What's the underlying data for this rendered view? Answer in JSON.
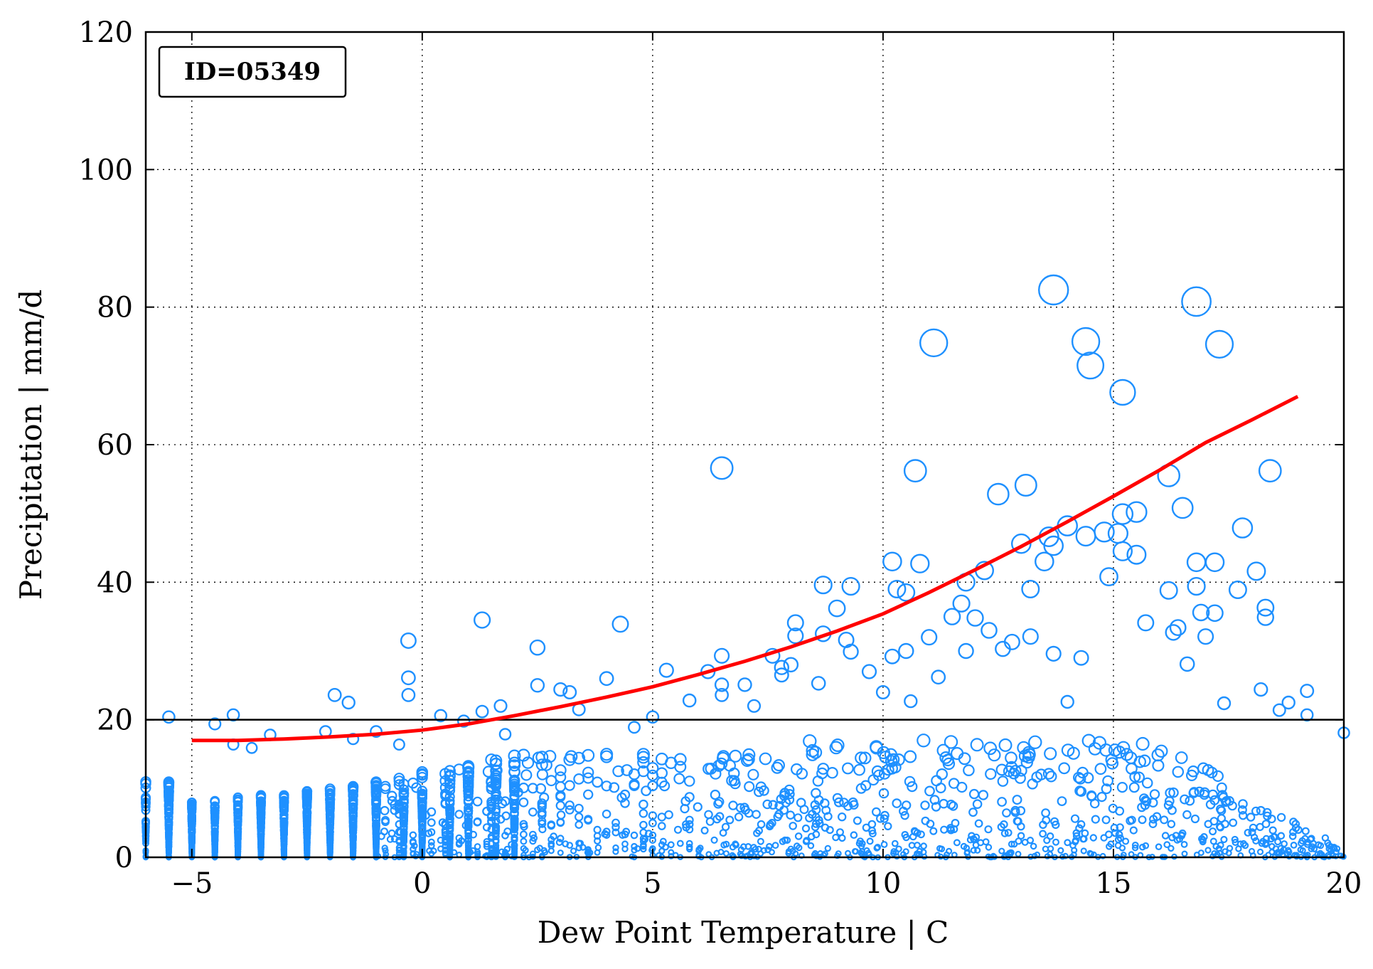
{
  "chart_data": {
    "type": "scatter",
    "title": "",
    "xlabel": "Dew Point Temperature | C",
    "ylabel": "Precipitation | mm/d",
    "xlim": [
      -6,
      20
    ],
    "ylim": [
      0,
      120
    ],
    "xticks": [
      -5,
      0,
      5,
      10,
      15,
      20
    ],
    "xtick_labels": [
      "−5",
      "0",
      "5",
      "10",
      "15",
      "20"
    ],
    "yticks": [
      0,
      20,
      40,
      60,
      80,
      100,
      120
    ],
    "ytick_labels": [
      "0",
      "20",
      "40",
      "60",
      "80",
      "100",
      "120"
    ],
    "grid": true,
    "annotation": "ID=05349",
    "colors": {
      "points": "#1e90ff",
      "fit_line": "#ff0000",
      "reference_line": "#000000",
      "axes": "#000000",
      "grid": "#000000"
    },
    "reference_line_y": 20,
    "fit_curve": {
      "x": [
        -5,
        -4,
        -3,
        -2,
        -1,
        0,
        1,
        2,
        3,
        4,
        5,
        6,
        7,
        8,
        9,
        10,
        11,
        12,
        13,
        14,
        15,
        16,
        17,
        18,
        19
      ],
      "y": [
        17,
        17.0,
        17.2,
        17.5,
        17.9,
        18.5,
        19.4,
        20.6,
        21.9,
        23.3,
        24.8,
        26.6,
        28.5,
        30.6,
        32.9,
        35.4,
        38.5,
        41.8,
        45.2,
        48.8,
        52.5,
        56.3,
        60.3,
        63.6,
        67
      ]
    },
    "series": [
      {
        "points": [
          [
            -5.5,
            20.4
          ],
          [
            -4.5,
            19.4
          ],
          [
            -4.1,
            20.7
          ],
          [
            -4.1,
            16.4
          ],
          [
            -3.7,
            15.9
          ],
          [
            -3.3,
            17.8
          ],
          [
            -2.1,
            18.3
          ],
          [
            -1.9,
            23.6
          ],
          [
            -1.6,
            22.5
          ],
          [
            -1.5,
            17.2
          ],
          [
            -1.0,
            18.3
          ],
          [
            -0.5,
            16.4
          ],
          [
            -0.3,
            31.5
          ],
          [
            -0.3,
            26.1
          ],
          [
            -0.3,
            23.6
          ],
          [
            0.4,
            20.6
          ],
          [
            0.9,
            19.8
          ],
          [
            1.3,
            34.5
          ],
          [
            1.3,
            21.2
          ],
          [
            1.7,
            22.0
          ],
          [
            1.8,
            17.9
          ],
          [
            2.5,
            30.5
          ],
          [
            2.5,
            25.0
          ],
          [
            3.0,
            24.4
          ],
          [
            3.2,
            24.0
          ],
          [
            3.4,
            21.5
          ],
          [
            4.0,
            26.0
          ],
          [
            4.3,
            33.9
          ],
          [
            4.6,
            18.9
          ],
          [
            5.0,
            20.4
          ],
          [
            5.3,
            27.2
          ],
          [
            5.8,
            22.8
          ],
          [
            6.2,
            27.0
          ],
          [
            6.5,
            56.6
          ],
          [
            6.5,
            29.3
          ],
          [
            6.5,
            25.1
          ],
          [
            6.5,
            23.6
          ],
          [
            7.0,
            25.1
          ],
          [
            7.2,
            22.0
          ],
          [
            7.6,
            29.3
          ],
          [
            7.8,
            27.6
          ],
          [
            7.8,
            26.5
          ],
          [
            8.0,
            28.0
          ],
          [
            8.1,
            34.1
          ],
          [
            8.1,
            32.2
          ],
          [
            8.6,
            25.3
          ],
          [
            8.7,
            39.6
          ],
          [
            8.7,
            32.5
          ],
          [
            9.0,
            36.2
          ],
          [
            9.2,
            31.6
          ],
          [
            9.3,
            39.4
          ],
          [
            9.3,
            29.9
          ],
          [
            9.7,
            27.0
          ],
          [
            10.0,
            24.0
          ],
          [
            10.2,
            43.0
          ],
          [
            10.2,
            29.2
          ],
          [
            10.3,
            39.0
          ],
          [
            10.5,
            38.5
          ],
          [
            10.5,
            30.0
          ],
          [
            10.6,
            22.7
          ],
          [
            10.7,
            56.2
          ],
          [
            10.8,
            42.7
          ],
          [
            11.0,
            32.0
          ],
          [
            11.1,
            74.8
          ],
          [
            11.2,
            26.2
          ],
          [
            11.5,
            35.0
          ],
          [
            11.7,
            36.9
          ],
          [
            11.8,
            40.0
          ],
          [
            11.8,
            30.0
          ],
          [
            12.0,
            34.8
          ],
          [
            12.2,
            41.7
          ],
          [
            12.3,
            33.0
          ],
          [
            12.5,
            52.8
          ],
          [
            12.6,
            30.3
          ],
          [
            12.8,
            31.3
          ],
          [
            13.0,
            45.6
          ],
          [
            13.1,
            54.1
          ],
          [
            13.2,
            39.0
          ],
          [
            13.2,
            32.1
          ],
          [
            13.5,
            43.0
          ],
          [
            13.6,
            46.6
          ],
          [
            13.7,
            82.5
          ],
          [
            13.7,
            45.3
          ],
          [
            13.7,
            29.6
          ],
          [
            14.0,
            48.2
          ],
          [
            14.0,
            22.6
          ],
          [
            14.3,
            29.0
          ],
          [
            14.4,
            75.0
          ],
          [
            14.4,
            46.7
          ],
          [
            14.5,
            71.5
          ],
          [
            14.8,
            47.3
          ],
          [
            14.9,
            40.8
          ],
          [
            15.1,
            47.1
          ],
          [
            15.2,
            67.6
          ],
          [
            15.2,
            49.9
          ],
          [
            15.2,
            44.5
          ],
          [
            15.5,
            50.2
          ],
          [
            15.5,
            44.0
          ],
          [
            15.7,
            34.1
          ],
          [
            16.2,
            55.5
          ],
          [
            16.2,
            38.8
          ],
          [
            16.3,
            32.7
          ],
          [
            16.4,
            33.4
          ],
          [
            16.5,
            50.8
          ],
          [
            16.6,
            28.1
          ],
          [
            16.8,
            80.8
          ],
          [
            16.8,
            42.9
          ],
          [
            16.8,
            39.4
          ],
          [
            16.9,
            35.6
          ],
          [
            17.0,
            32.1
          ],
          [
            17.2,
            42.9
          ],
          [
            17.2,
            35.5
          ],
          [
            17.3,
            74.6
          ],
          [
            17.4,
            22.4
          ],
          [
            17.7,
            38.9
          ],
          [
            17.8,
            47.9
          ],
          [
            18.1,
            41.6
          ],
          [
            18.2,
            24.4
          ],
          [
            18.3,
            36.3
          ],
          [
            18.3,
            34.9
          ],
          [
            18.4,
            56.2
          ],
          [
            18.6,
            21.4
          ],
          [
            18.8,
            22.5
          ],
          [
            19.2,
            20.7
          ],
          [
            19.2,
            24.2
          ],
          [
            20.0,
            18.1
          ]
        ]
      }
    ]
  }
}
